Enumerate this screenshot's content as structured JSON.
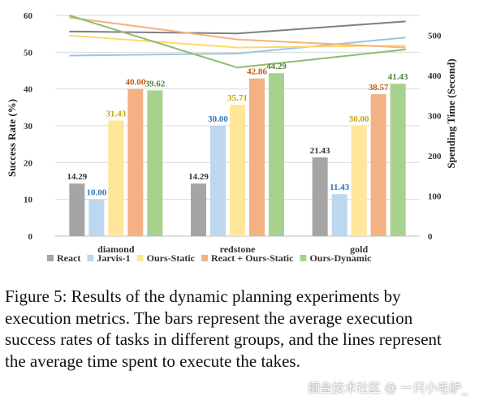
{
  "chart_data": {
    "type": "bar",
    "categories": [
      "diamond",
      "redstone",
      "gold"
    ],
    "series": [
      {
        "name": "React",
        "color": "#a5a5a5",
        "label_color": "#333333",
        "values": [
          14.29,
          14.29,
          21.43
        ]
      },
      {
        "name": "Jarvis-1",
        "color": "#bdd7ee",
        "label_color": "#2e75b6",
        "values": [
          10.0,
          30.0,
          11.43
        ]
      },
      {
        "name": "Ours-Static",
        "color": "#ffe699",
        "label_color": "#c9a400",
        "values": [
          31.43,
          35.71,
          30.0
        ]
      },
      {
        "name": "React + Ours-Static",
        "color": "#f4b183",
        "label_color": "#c55a11",
        "values": [
          40.0,
          42.86,
          38.57
        ]
      },
      {
        "name": "Ours-Dynamic",
        "color": "#a9d18e",
        "label_color": "#548235",
        "values": [
          39.62,
          44.29,
          41.43
        ]
      }
    ],
    "data_labels": [
      [
        "14.29",
        "14.29",
        "21.43"
      ],
      [
        "10.00",
        "30.00",
        "11.43"
      ],
      [
        "31.43",
        "35.71",
        "30.00"
      ],
      [
        "40.00",
        "42.86",
        "38.57"
      ],
      [
        "39.62",
        "44.29",
        "41.43"
      ]
    ],
    "lines": [
      {
        "series": "React",
        "axis": "right",
        "color": "#7f7f7f",
        "values": [
          510,
          505,
          535
        ]
      },
      {
        "series": "Jarvis-1",
        "axis": "right",
        "color": "#9dc3e6",
        "values": [
          450,
          455,
          495
        ]
      },
      {
        "series": "Ours-Static",
        "axis": "right",
        "color": "#ffd966",
        "values": [
          500,
          470,
          475
        ]
      },
      {
        "series": "React + Ours-Static",
        "axis": "right",
        "color": "#f4b183",
        "values": [
          545,
          490,
          470
        ]
      },
      {
        "series": "Ours-Dynamic",
        "axis": "right",
        "color": "#8fbc6d",
        "values": [
          550,
          420,
          465
        ]
      }
    ],
    "ylabel": "Success Rate (%)",
    "y2label": "Spending Time (Second)",
    "ylim": [
      0,
      60
    ],
    "yticks": [
      "0",
      "10",
      "20",
      "30",
      "40",
      "50",
      "60"
    ],
    "y2lim": [
      0,
      550
    ],
    "y2ticks": [
      "0",
      "100",
      "200",
      "300",
      "400",
      "500"
    ],
    "grid": true,
    "legend_position": "bottom"
  },
  "caption": "Figure 5: Results of the dynamic planning experiments by execution metrics. The bars represent the average execution success rates of tasks in different groups, and the lines represent the average time spent to execute the takes.",
  "watermark": "掘金技术社区 @ 一只小毛驴_"
}
